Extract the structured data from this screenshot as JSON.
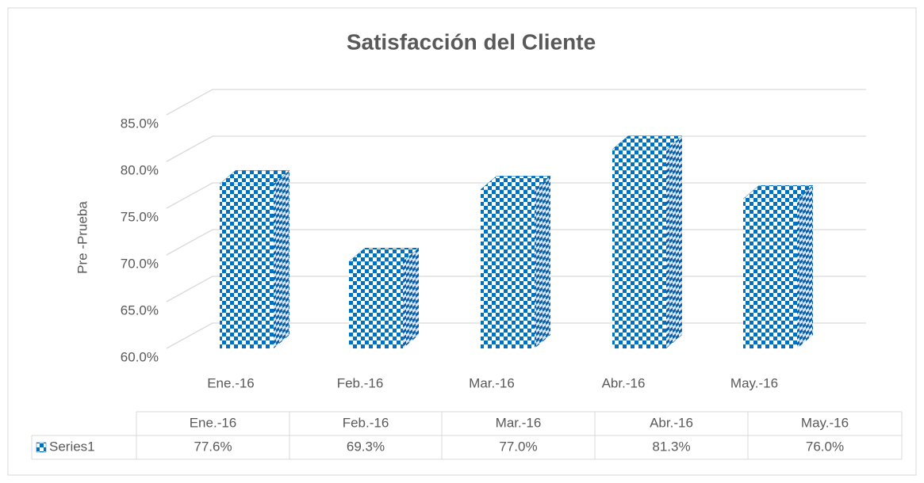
{
  "chart_data": {
    "type": "bar3d",
    "title": "Satisfacción del Cliente",
    "y_label": "Pre -Prueba",
    "categories": [
      "Ene.-16",
      "Feb.-16",
      "Mar.-16",
      "Abr.-16",
      "May.-16"
    ],
    "series": [
      {
        "name": "Series1",
        "color": "#0070c0",
        "values": [
          77.6,
          69.3,
          77.0,
          81.3,
          76.0
        ],
        "value_labels": [
          "77.6%",
          "69.3%",
          "77.0%",
          "81.3%",
          "76.0%"
        ]
      }
    ],
    "ylim": [
      60,
      85
    ],
    "yticks": [
      {
        "value": 60,
        "label": "60.0%"
      },
      {
        "value": 65,
        "label": "65.0%"
      },
      {
        "value": 70,
        "label": "70.0%"
      },
      {
        "value": 75,
        "label": "75.0%"
      },
      {
        "value": 80,
        "label": "80.0%"
      },
      {
        "value": 85,
        "label": "85.0%"
      }
    ],
    "grid": true,
    "data_table": true
  }
}
